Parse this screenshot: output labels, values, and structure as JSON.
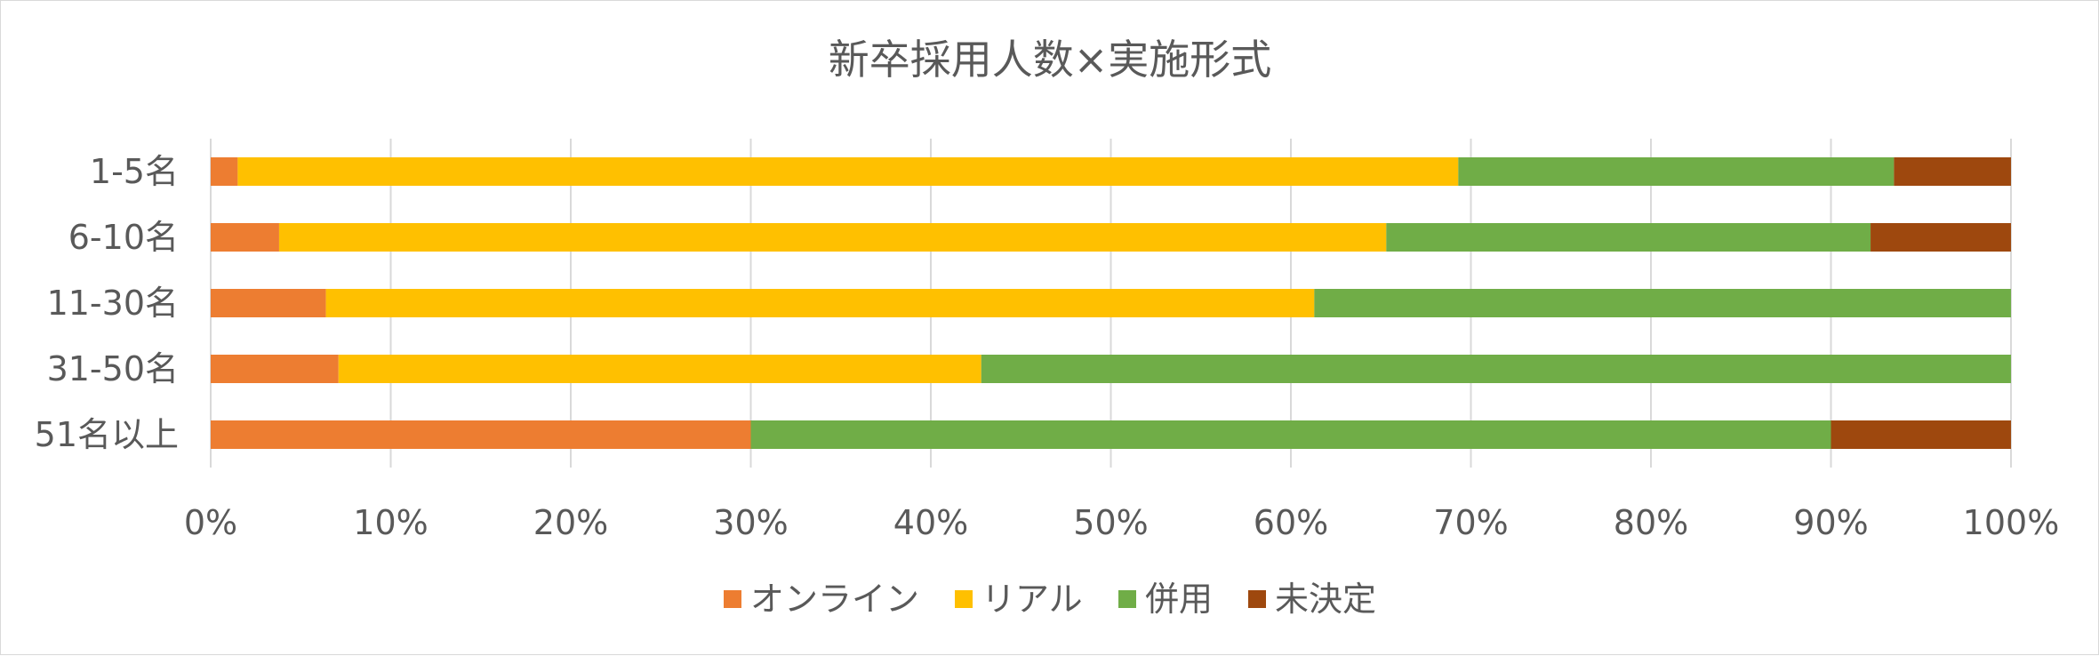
{
  "chart_data": {
    "type": "bar",
    "orientation": "horizontal",
    "stacked": "percent",
    "title": "新卒採用人数×実施形式",
    "categories": [
      "1-5名",
      "6-10名",
      "11-30名",
      "31-50名",
      "51名以上"
    ],
    "series": [
      {
        "name": "オンライン",
        "color": "#ED7D31",
        "values": [
          1.5,
          3.8,
          6.4,
          7.1,
          30.0
        ]
      },
      {
        "name": "リアル",
        "color": "#FFC000",
        "values": [
          67.8,
          61.5,
          54.9,
          35.7,
          0.0
        ]
      },
      {
        "name": "併用",
        "color": "#70AD47",
        "values": [
          24.2,
          26.9,
          38.7,
          57.2,
          60.0
        ]
      },
      {
        "name": "未決定",
        "color": "#9E480E",
        "values": [
          6.5,
          7.8,
          0.0,
          0.0,
          10.0
        ]
      }
    ],
    "x_ticks": [
      "0%",
      "10%",
      "20%",
      "30%",
      "40%",
      "50%",
      "60%",
      "70%",
      "80%",
      "90%",
      "100%"
    ],
    "xlim": [
      0,
      100
    ],
    "grid": true,
    "legend_position": "bottom"
  }
}
